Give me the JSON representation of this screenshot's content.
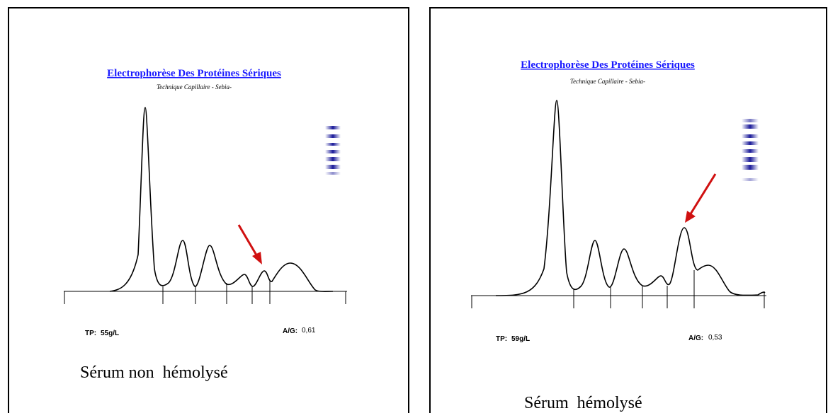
{
  "panels": [
    {
      "title": "Electrophorèse Des Protéines Sériques",
      "subtitle": "Technique Capillaire - Sebia-",
      "tp_label": "TP:",
      "tp_value": "55g/L",
      "ag_label": "A/G:",
      "ag_value": "0,61",
      "caption": "Sérum non  hémolysé"
    },
    {
      "title": "Electrophorèse Des Protéines Sériques",
      "subtitle": "Technique Capillaire - Sebia-",
      "tp_label": "TP:",
      "tp_value": "59g/L",
      "ag_label": "A/G:",
      "ag_value": "0,53",
      "caption": "Sérum  hémolysé"
    }
  ]
}
